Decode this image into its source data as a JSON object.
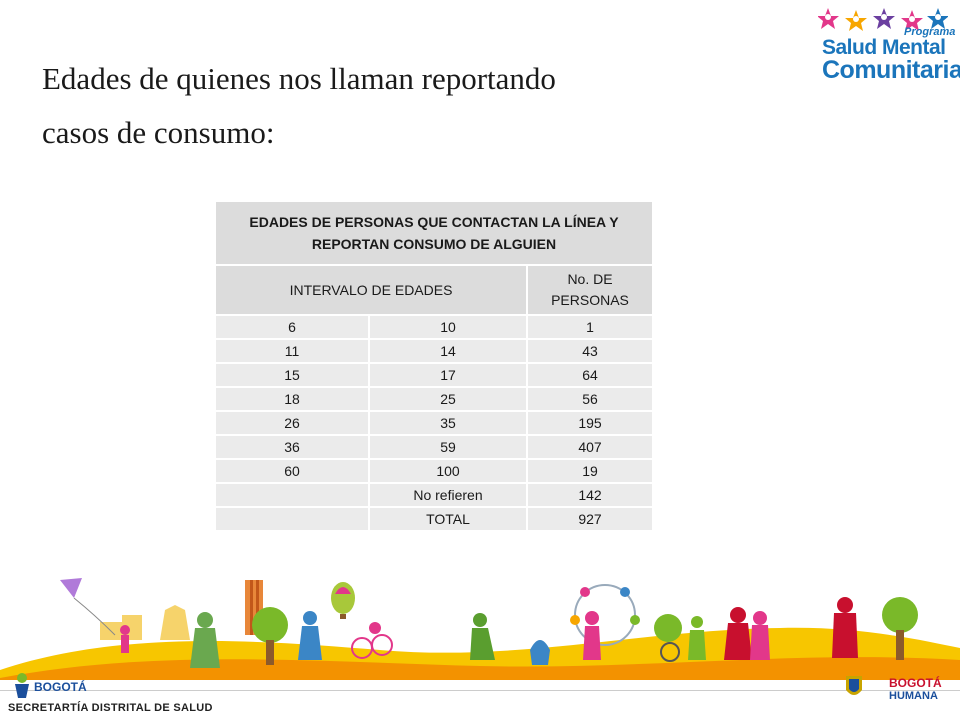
{
  "slide": {
    "title_line1": "Edades de quienes nos llaman reportando",
    "title_line2": "casos de consumo:"
  },
  "logo": {
    "programa": "Programa",
    "line1": "Salud Mental",
    "line2": "Comunitaria"
  },
  "table": {
    "header": "EDADES DE PERSONAS QUE CONTACTAN LA LÍNEA Y REPORTAN CONSUMO DE ALGUIEN",
    "col_interval": "INTERVALO DE EDADES",
    "col_count": "No. DE PERSONAS",
    "rows": [
      {
        "from": "6",
        "to": "10",
        "count": "1"
      },
      {
        "from": "11",
        "to": "14",
        "count": "43"
      },
      {
        "from": "15",
        "to": "17",
        "count": "64"
      },
      {
        "from": "18",
        "to": "25",
        "count": "56"
      },
      {
        "from": "26",
        "to": "35",
        "count": "195"
      },
      {
        "from": "36",
        "to": "59",
        "count": "407"
      },
      {
        "from": "60",
        "to": "100",
        "count": "19"
      },
      {
        "from": "",
        "to": "No refieren",
        "count": "142"
      },
      {
        "from": "",
        "to": "TOTAL",
        "count": "927"
      }
    ]
  },
  "footer": {
    "secretaria": "SECRETARTÍA DISTRITAL DE SALUD",
    "bogota_left": "BOGOTÁ",
    "bogota_right_1": "BOGOTÁ",
    "bogota_right_2": "HUMANA"
  },
  "colors": {
    "brand_blue": "#1b75bb",
    "banner_yellow": "#f7c600",
    "banner_orange": "#f39200",
    "banner_green": "#7ab929"
  }
}
